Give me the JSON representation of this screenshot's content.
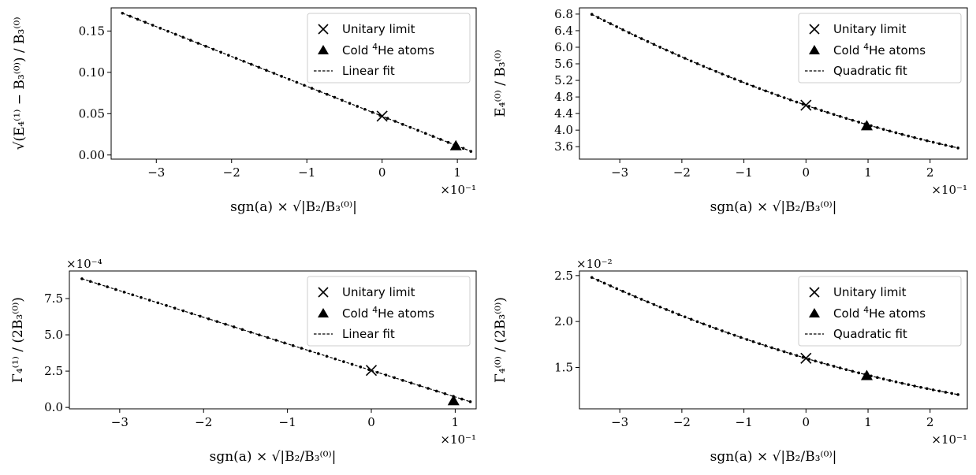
{
  "chart_data": [
    {
      "type": "line",
      "xlabel": "sgn(a) × √|B₂/B₃⁽⁰⁾|",
      "ylabel": "√(E₄⁽¹⁾ − B₃⁽⁰⁾) / B₃⁽⁰⁾",
      "x_scale_label": "×10⁻¹",
      "y_scale_label": "",
      "xlim": [
        -3.6,
        1.25
      ],
      "ylim": [
        -0.005,
        0.178
      ],
      "xticks": [
        -3,
        -2,
        -1,
        0,
        1
      ],
      "xtick_labels": [
        "−3",
        "−2",
        "−1",
        "0",
        "1"
      ],
      "yticks": [
        0.0,
        0.05,
        0.1,
        0.15
      ],
      "ytick_labels": [
        "0.00",
        "0.05",
        "0.10",
        "0.15"
      ],
      "fit": "linear",
      "fit_coeffs": [
        0.047,
        -0.0361,
        0
      ],
      "dots_x_range": [
        -3.45,
        1.18
      ],
      "unitary_limit": {
        "x": 0,
        "y": 0.047
      },
      "cold_he_atoms": {
        "x": 0.98,
        "y": 0.011
      },
      "legend": {
        "unitary_limit": "Unitary limit",
        "cold_he_pre": "Cold ",
        "cold_he_sup": "4",
        "cold_he_post": "He atoms",
        "fit": "Linear fit"
      },
      "legend_placement": "top-right",
      "grid": false
    },
    {
      "type": "line",
      "xlabel": "sgn(a) × √|B₂/B₃⁽⁰⁾|",
      "ylabel": "E₄⁽⁰⁾ / B₃⁽⁰⁾",
      "x_scale_label": "×10⁻¹",
      "y_scale_label": "",
      "xlim": [
        -3.65,
        2.6
      ],
      "ylim": [
        3.3,
        6.95
      ],
      "xticks": [
        -3,
        -2,
        -1,
        0,
        1,
        2
      ],
      "xtick_labels": [
        "−3",
        "−2",
        "−1",
        "0",
        "1",
        "2"
      ],
      "yticks": [
        3.6,
        4.0,
        4.4,
        4.8,
        5.2,
        5.6,
        6.0,
        6.4,
        6.8
      ],
      "ytick_labels": [
        "3.6",
        "4.0",
        "4.4",
        "4.8",
        "5.2",
        "5.6",
        "6.0",
        "6.4",
        "6.8"
      ],
      "fit": "quadratic",
      "fit_coeffs": [
        4.6,
        -0.51,
        0.0365
      ],
      "dots_x_range": [
        -3.45,
        2.45
      ],
      "unitary_limit": {
        "x": 0,
        "y": 4.6
      },
      "cold_he_atoms": {
        "x": 0.98,
        "y": 4.1
      },
      "legend": {
        "unitary_limit": "Unitary limit",
        "cold_he_pre": "Cold ",
        "cold_he_sup": "4",
        "cold_he_post": "He atoms",
        "fit": "Quadratic fit"
      },
      "legend_placement": "top-right",
      "grid": false
    },
    {
      "type": "line",
      "xlabel": "sgn(a) × √|B₂/B₃⁽⁰⁾|",
      "ylabel": "Γ₄⁽¹⁾ / (2B₃⁽⁰⁾)",
      "x_scale_label": "×10⁻¹",
      "y_scale_label": "×10⁻⁴",
      "xlim": [
        -3.6,
        1.25
      ],
      "ylim": [
        -0.1,
        9.4
      ],
      "xticks": [
        -3,
        -2,
        -1,
        0,
        1
      ],
      "xtick_labels": [
        "−3",
        "−2",
        "−1",
        "0",
        "1"
      ],
      "yticks": [
        0.0,
        2.5,
        5.0,
        7.5
      ],
      "ytick_labels": [
        "0.0",
        "2.5",
        "5.0",
        "7.5"
      ],
      "fit": "linear",
      "fit_coeffs": [
        2.55,
        -1.83,
        0
      ],
      "dots_x_range": [
        -3.45,
        1.18
      ],
      "unitary_limit": {
        "x": 0,
        "y": 2.55
      },
      "cold_he_atoms": {
        "x": 0.98,
        "y": 0.45
      },
      "legend": {
        "unitary_limit": "Unitary limit",
        "cold_he_pre": "Cold ",
        "cold_he_sup": "4",
        "cold_he_post": "He atoms",
        "fit": "Linear fit"
      },
      "legend_placement": "top-right",
      "grid": false
    },
    {
      "type": "line",
      "xlabel": "sgn(a) × √|B₂/B₃⁽⁰⁾|",
      "ylabel": "Γ₄⁽⁰⁾ / (2B₃⁽⁰⁾)",
      "x_scale_label": "×10⁻¹",
      "y_scale_label": "×10⁻²",
      "xlim": [
        -3.65,
        2.6
      ],
      "ylim": [
        1.05,
        2.55
      ],
      "xticks": [
        -3,
        -2,
        -1,
        0,
        1,
        2
      ],
      "xtick_labels": [
        "−3",
        "−2",
        "−1",
        "0",
        "1",
        "2"
      ],
      "yticks": [
        1.5,
        2.0,
        2.5
      ],
      "ytick_labels": [
        "1.5",
        "2.0",
        "2.5"
      ],
      "fit": "quadratic",
      "fit_coeffs": [
        1.6,
        -0.2,
        0.0159
      ],
      "dots_x_range": [
        -3.45,
        2.45
      ],
      "unitary_limit": {
        "x": 0,
        "y": 1.6
      },
      "cold_he_atoms": {
        "x": 0.98,
        "y": 1.41
      },
      "legend": {
        "unitary_limit": "Unitary limit",
        "cold_he_pre": "Cold ",
        "cold_he_sup": "4",
        "cold_he_post": "He atoms",
        "fit": "Quadratic fit"
      },
      "legend_placement": "top-right",
      "grid": false
    }
  ]
}
